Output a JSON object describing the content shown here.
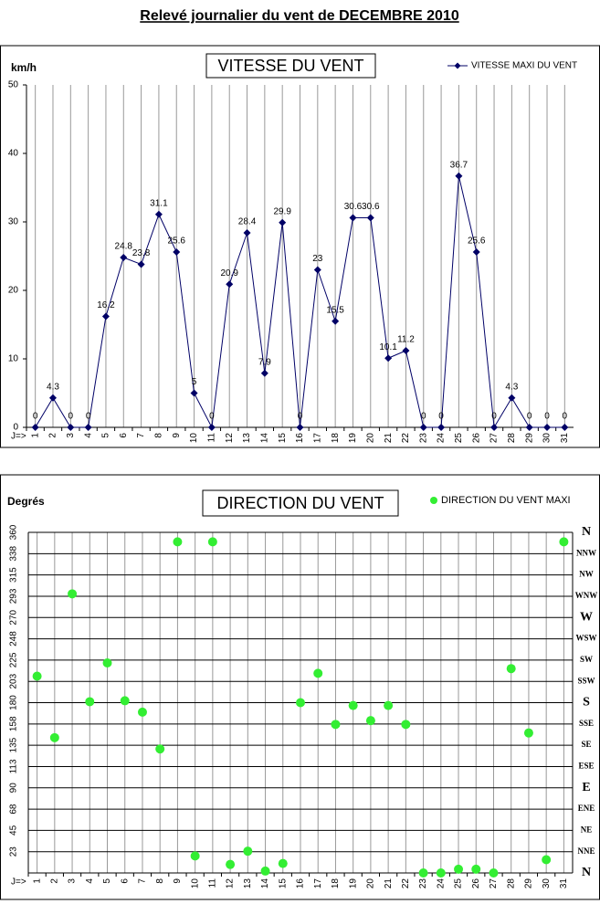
{
  "title": "Relevé journalier du vent de DECEMBRE 2010",
  "chart_data": [
    {
      "type": "line",
      "title": "VITESSE DU VENT",
      "y_label": "km/h",
      "x_label": "J=>",
      "categories": [
        "1",
        "2",
        "3",
        "4",
        "5",
        "6",
        "7",
        "8",
        "9",
        "10",
        "11",
        "12",
        "13",
        "14",
        "15",
        "16",
        "17",
        "18",
        "19",
        "20",
        "21",
        "22",
        "23",
        "24",
        "25",
        "26",
        "27",
        "28",
        "29",
        "30",
        "31"
      ],
      "series": [
        {
          "name": "VITESSE MAXI DU VENT",
          "color": "#000066",
          "values": [
            0,
            4.3,
            0,
            0,
            16.2,
            24.8,
            23.8,
            31.1,
            25.6,
            5,
            0,
            20.9,
            28.4,
            7.9,
            29.9,
            0,
            23,
            15.5,
            30.6,
            30.6,
            10.1,
            11.2,
            0,
            0,
            36.7,
            25.6,
            0,
            4.3,
            0,
            0,
            0
          ]
        }
      ],
      "ylim": [
        0,
        50
      ],
      "yticks": [
        0,
        10,
        20,
        30,
        40,
        50
      ],
      "grid": "x",
      "data_labels": true
    },
    {
      "type": "scatter",
      "title": "DIRECTION DU VENT",
      "y_label": "Degrés",
      "x_label": "J=>",
      "categories": [
        "1",
        "2",
        "3",
        "4",
        "5",
        "6",
        "7",
        "8",
        "9",
        "10",
        "11",
        "12",
        "13",
        "14",
        "15",
        "16",
        "17",
        "18",
        "19",
        "20",
        "21",
        "22",
        "23",
        "24",
        "25",
        "26",
        "27",
        "28",
        "29",
        "30",
        "31"
      ],
      "series": [
        {
          "name": "DIRECTION DU VENT MAXI",
          "color": "#33ee33",
          "values": [
            208,
            143,
            295,
            181,
            222,
            182,
            170,
            131,
            350,
            18,
            350,
            9,
            23,
            2,
            10,
            180,
            211,
            157,
            177,
            161,
            177,
            157,
            0,
            0,
            4,
            4,
            0,
            216,
            148,
            14,
            350
          ]
        }
      ],
      "ylim": [
        0,
        360
      ],
      "yticks": [
        {
          "value": 22.5,
          "label": "23"
        },
        45,
        {
          "value": 67.5,
          "label": "68"
        },
        90,
        {
          "value": 112.5,
          "label": "113"
        },
        135,
        {
          "value": 157.5,
          "label": "158"
        },
        180,
        {
          "value": 202.5,
          "label": "203"
        },
        225,
        {
          "value": 247.5,
          "label": "248"
        },
        270,
        {
          "value": 292.5,
          "label": "293"
        },
        315,
        {
          "value": 337.5,
          "label": "338"
        },
        360
      ],
      "y2lim": [
        0,
        360
      ],
      "y2ticks": [
        {
          "value": 0,
          "label": "N"
        },
        {
          "value": 22.5,
          "label": "NNE"
        },
        {
          "value": 45,
          "label": "NE"
        },
        {
          "value": 67.5,
          "label": "ENE"
        },
        {
          "value": 90,
          "label": "E"
        },
        {
          "value": 112.5,
          "label": "ESE"
        },
        {
          "value": 135,
          "label": "SE"
        },
        {
          "value": 157.5,
          "label": "SSE"
        },
        {
          "value": 180,
          "label": "S"
        },
        {
          "value": 202.5,
          "label": "SSW"
        },
        {
          "value": 225,
          "label": "SW"
        },
        {
          "value": 247.5,
          "label": "WSW"
        },
        {
          "value": 270,
          "label": "W"
        },
        {
          "value": 292.5,
          "label": "WNW"
        },
        {
          "value": 315,
          "label": "NW"
        },
        {
          "value": 337.5,
          "label": "NNW"
        },
        {
          "value": 360,
          "label": "N"
        }
      ],
      "grid": "both"
    }
  ]
}
